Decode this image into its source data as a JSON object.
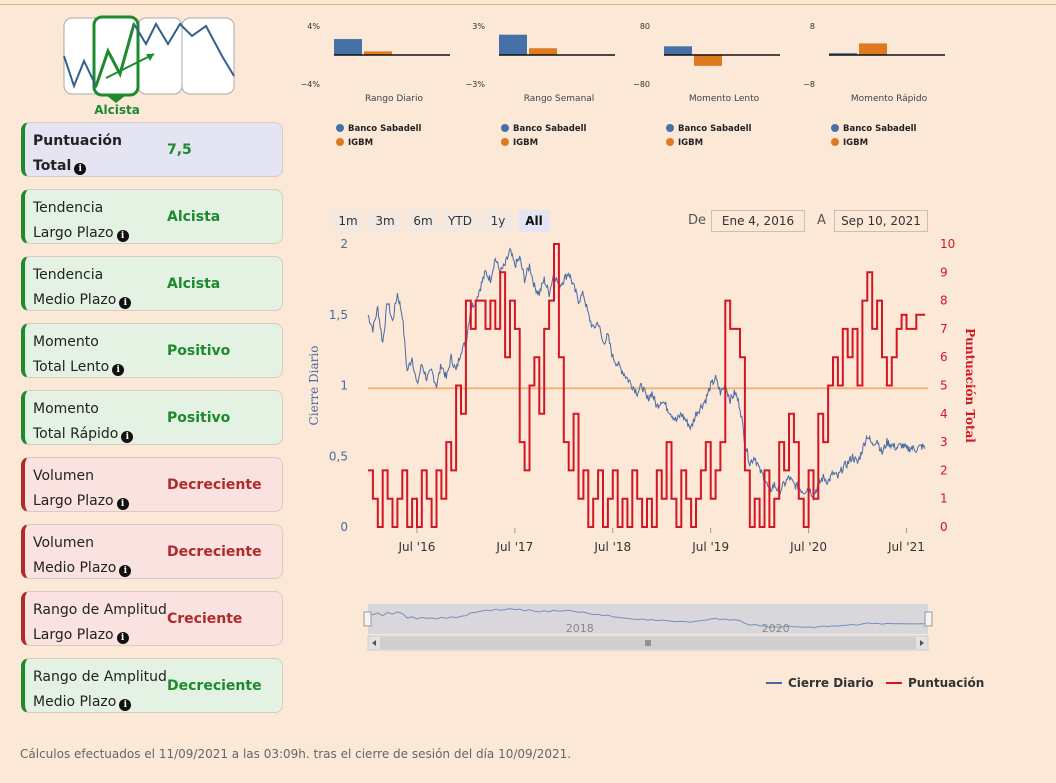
{
  "trend": {
    "label": "Alcista",
    "color": "#1d8a2d"
  },
  "cards": [
    {
      "line1": "Puntuación",
      "line2": "Total",
      "value": "7,5",
      "status": "total"
    },
    {
      "line1": "Tendencia",
      "line2": "Largo Plazo",
      "value": "Alcista",
      "status": "green"
    },
    {
      "line1": "Tendencia",
      "line2": "Medio Plazo",
      "value": "Alcista",
      "status": "green"
    },
    {
      "line1": "Momento",
      "line2": "Total Lento",
      "value": "Positivo",
      "status": "green"
    },
    {
      "line1": "Momento",
      "line2": "Total Rápido",
      "value": "Positivo",
      "status": "green"
    },
    {
      "line1": "Volumen",
      "line2": "Largo Plazo",
      "value": "Decreciente",
      "status": "red"
    },
    {
      "line1": "Volumen",
      "line2": "Medio Plazo",
      "value": "Decreciente",
      "status": "red"
    },
    {
      "line1": "Rango de Amplitud",
      "line2": "Largo Plazo",
      "value": "Creciente",
      "status": "red"
    },
    {
      "line1": "Rango de Amplitud",
      "line2": "Medio Plazo",
      "value": "Decreciente",
      "status": "green"
    }
  ],
  "colors": {
    "sabadell": "#4472a6",
    "igbm": "#e07a1f",
    "close_line": "#4a6aa5",
    "score_line": "#d41524",
    "ref_line": "#f0b07a"
  },
  "range_buttons": [
    "1m",
    "3m",
    "6m",
    "YTD",
    "1y",
    "All"
  ],
  "range_active": "All",
  "date_from_label": "De",
  "date_from": "Ene 4, 2016",
  "date_to_label": "A",
  "date_to": "Sep 10, 2021",
  "footer": "Cálculos efectuados el 11/09/2021 a las 03:09h. tras el cierre de sesión del día 10/09/2021.",
  "chart_data": [
    {
      "type": "bar",
      "title": "Rango Diario",
      "categories": [
        "Banco Sabadell",
        "IGBM"
      ],
      "values": [
        2.2,
        0.5
      ],
      "ylim": [
        -4,
        4
      ],
      "tick_labels": [
        "4%",
        "−4%"
      ]
    },
    {
      "type": "bar",
      "title": "Rango Semanal",
      "categories": [
        "Banco Sabadell",
        "IGBM"
      ],
      "values": [
        2.1,
        0.7
      ],
      "ylim": [
        -3,
        3
      ],
      "tick_labels": [
        "3%",
        "−3%"
      ]
    },
    {
      "type": "bar",
      "title": "Momento Lento",
      "categories": [
        "Banco Sabadell",
        "IGBM"
      ],
      "values": [
        24,
        -30
      ],
      "ylim": [
        -80,
        80
      ],
      "tick_labels": [
        "80",
        "−80"
      ]
    },
    {
      "type": "bar",
      "title": "Momento Rápido",
      "categories": [
        "Banco Sabadell",
        "IGBM"
      ],
      "values": [
        0.5,
        3.2
      ],
      "ylim": [
        -8,
        8
      ],
      "tick_labels": [
        "8",
        "−8"
      ]
    },
    {
      "type": "line",
      "x_ticks": [
        "Jul '16",
        "Jul '17",
        "Jul '18",
        "Jul '19",
        "Jul '20",
        "Jul '21"
      ],
      "y_left_label": "Cierre Diario",
      "y_left_ticks": [
        "0",
        "0,5",
        "1",
        "1,5",
        "2"
      ],
      "y_left_lim": [
        0,
        2
      ],
      "y_right_label": "Puntuación Total",
      "y_right_ticks": [
        "0",
        "1",
        "2",
        "3",
        "4",
        "5",
        "6",
        "7",
        "8",
        "9",
        "10"
      ],
      "y_right_lim": [
        0,
        10
      ],
      "ref_line_left": 0.98,
      "series": [
        {
          "name": "Cierre Diario",
          "axis": "left",
          "points": [
            [
              2016.0,
              1.5
            ],
            [
              2016.05,
              1.4
            ],
            [
              2016.1,
              1.55
            ],
            [
              2016.15,
              1.3
            ],
            [
              2016.2,
              1.6
            ],
            [
              2016.25,
              1.45
            ],
            [
              2016.3,
              1.65
            ],
            [
              2016.35,
              1.5
            ],
            [
              2016.4,
              1.1
            ],
            [
              2016.45,
              1.2
            ],
            [
              2016.5,
              1.0
            ],
            [
              2016.55,
              1.15
            ],
            [
              2016.6,
              1.05
            ],
            [
              2016.65,
              1.1
            ],
            [
              2016.7,
              1.0
            ],
            [
              2016.75,
              1.15
            ],
            [
              2016.8,
              1.05
            ],
            [
              2016.85,
              1.2
            ],
            [
              2016.9,
              1.1
            ],
            [
              2016.95,
              1.25
            ],
            [
              2017.0,
              1.3
            ],
            [
              2017.05,
              1.55
            ],
            [
              2017.1,
              1.6
            ],
            [
              2017.15,
              1.7
            ],
            [
              2017.2,
              1.8
            ],
            [
              2017.25,
              1.75
            ],
            [
              2017.3,
              1.9
            ],
            [
              2017.35,
              1.8
            ],
            [
              2017.4,
              1.85
            ],
            [
              2017.45,
              1.95
            ],
            [
              2017.5,
              1.85
            ],
            [
              2017.55,
              1.9
            ],
            [
              2017.6,
              1.75
            ],
            [
              2017.65,
              1.85
            ],
            [
              2017.7,
              1.7
            ],
            [
              2017.75,
              1.65
            ],
            [
              2017.8,
              1.75
            ],
            [
              2017.85,
              1.65
            ],
            [
              2017.9,
              1.8
            ],
            [
              2017.95,
              1.7
            ],
            [
              2018.0,
              1.75
            ],
            [
              2018.05,
              1.8
            ],
            [
              2018.1,
              1.7
            ],
            [
              2018.15,
              1.6
            ],
            [
              2018.2,
              1.65
            ],
            [
              2018.25,
              1.5
            ],
            [
              2018.3,
              1.4
            ],
            [
              2018.35,
              1.45
            ],
            [
              2018.4,
              1.3
            ],
            [
              2018.45,
              1.35
            ],
            [
              2018.5,
              1.2
            ],
            [
              2018.55,
              1.15
            ],
            [
              2018.6,
              1.1
            ],
            [
              2018.65,
              1.05
            ],
            [
              2018.7,
              1.0
            ],
            [
              2018.75,
              0.95
            ],
            [
              2018.8,
              1.0
            ],
            [
              2018.85,
              0.9
            ],
            [
              2018.9,
              0.95
            ],
            [
              2018.95,
              0.85
            ],
            [
              2019.0,
              0.9
            ],
            [
              2019.05,
              0.85
            ],
            [
              2019.1,
              0.8
            ],
            [
              2019.15,
              0.75
            ],
            [
              2019.2,
              0.8
            ],
            [
              2019.25,
              0.75
            ],
            [
              2019.3,
              0.7
            ],
            [
              2019.35,
              0.8
            ],
            [
              2019.4,
              0.85
            ],
            [
              2019.45,
              0.9
            ],
            [
              2019.5,
              1.0
            ],
            [
              2019.55,
              1.05
            ],
            [
              2019.6,
              0.95
            ],
            [
              2019.65,
              1.0
            ],
            [
              2019.7,
              0.9
            ],
            [
              2019.75,
              0.95
            ],
            [
              2019.8,
              0.85
            ],
            [
              2019.85,
              0.6
            ],
            [
              2019.9,
              0.45
            ],
            [
              2019.95,
              0.5
            ],
            [
              2020.0,
              0.4
            ],
            [
              2020.05,
              0.35
            ],
            [
              2020.1,
              0.25
            ],
            [
              2020.15,
              0.3
            ],
            [
              2020.2,
              0.25
            ],
            [
              2020.25,
              0.3
            ],
            [
              2020.3,
              0.35
            ],
            [
              2020.35,
              0.3
            ],
            [
              2020.4,
              0.28
            ],
            [
              2020.45,
              0.25
            ],
            [
              2020.5,
              0.28
            ],
            [
              2020.55,
              0.22
            ],
            [
              2020.6,
              0.3
            ],
            [
              2020.65,
              0.35
            ],
            [
              2020.7,
              0.32
            ],
            [
              2020.75,
              0.38
            ],
            [
              2020.8,
              0.35
            ],
            [
              2020.85,
              0.42
            ],
            [
              2020.9,
              0.45
            ],
            [
              2020.95,
              0.5
            ],
            [
              2021.0,
              0.45
            ],
            [
              2021.05,
              0.55
            ],
            [
              2021.1,
              0.65
            ],
            [
              2021.15,
              0.58
            ],
            [
              2021.2,
              0.62
            ],
            [
              2021.25,
              0.52
            ],
            [
              2021.3,
              0.6
            ],
            [
              2021.35,
              0.58
            ],
            [
              2021.4,
              0.56
            ],
            [
              2021.45,
              0.58
            ],
            [
              2021.5,
              0.55
            ],
            [
              2021.55,
              0.56
            ],
            [
              2021.6,
              0.55
            ],
            [
              2021.65,
              0.57
            ],
            [
              2021.69,
              0.56
            ]
          ]
        },
        {
          "name": "Puntuación",
          "axis": "right",
          "points": [
            [
              2016.0,
              2
            ],
            [
              2016.05,
              1
            ],
            [
              2016.1,
              0
            ],
            [
              2016.15,
              2
            ],
            [
              2016.2,
              1
            ],
            [
              2016.25,
              0
            ],
            [
              2016.3,
              1
            ],
            [
              2016.35,
              2
            ],
            [
              2016.4,
              0
            ],
            [
              2016.45,
              1
            ],
            [
              2016.5,
              0
            ],
            [
              2016.55,
              2
            ],
            [
              2016.6,
              1
            ],
            [
              2016.65,
              0
            ],
            [
              2016.7,
              2
            ],
            [
              2016.75,
              1
            ],
            [
              2016.8,
              3
            ],
            [
              2016.85,
              2
            ],
            [
              2016.9,
              5
            ],
            [
              2016.95,
              4
            ],
            [
              2017.0,
              8
            ],
            [
              2017.05,
              7
            ],
            [
              2017.1,
              8
            ],
            [
              2017.15,
              8
            ],
            [
              2017.2,
              7
            ],
            [
              2017.25,
              8
            ],
            [
              2017.3,
              7
            ],
            [
              2017.35,
              9
            ],
            [
              2017.4,
              6
            ],
            [
              2017.45,
              8
            ],
            [
              2017.5,
              7
            ],
            [
              2017.55,
              3
            ],
            [
              2017.6,
              2
            ],
            [
              2017.65,
              5
            ],
            [
              2017.7,
              6
            ],
            [
              2017.75,
              4
            ],
            [
              2017.8,
              7
            ],
            [
              2017.85,
              8
            ],
            [
              2017.9,
              10
            ],
            [
              2017.95,
              6
            ],
            [
              2018.0,
              3
            ],
            [
              2018.05,
              2
            ],
            [
              2018.1,
              4
            ],
            [
              2018.15,
              1
            ],
            [
              2018.2,
              2
            ],
            [
              2018.25,
              0
            ],
            [
              2018.3,
              1
            ],
            [
              2018.35,
              2
            ],
            [
              2018.4,
              0
            ],
            [
              2018.45,
              1
            ],
            [
              2018.5,
              2
            ],
            [
              2018.55,
              0
            ],
            [
              2018.6,
              1
            ],
            [
              2018.65,
              0
            ],
            [
              2018.7,
              2
            ],
            [
              2018.75,
              1
            ],
            [
              2018.8,
              0
            ],
            [
              2018.85,
              1
            ],
            [
              2018.9,
              0
            ],
            [
              2018.95,
              2
            ],
            [
              2019.0,
              1
            ],
            [
              2019.05,
              3
            ],
            [
              2019.1,
              1
            ],
            [
              2019.15,
              0
            ],
            [
              2019.2,
              2
            ],
            [
              2019.25,
              1
            ],
            [
              2019.3,
              0
            ],
            [
              2019.35,
              1
            ],
            [
              2019.4,
              2
            ],
            [
              2019.45,
              3
            ],
            [
              2019.5,
              1
            ],
            [
              2019.55,
              2
            ],
            [
              2019.6,
              3
            ],
            [
              2019.65,
              8
            ],
            [
              2019.7,
              7
            ],
            [
              2019.75,
              7
            ],
            [
              2019.8,
              6
            ],
            [
              2019.85,
              2
            ],
            [
              2019.9,
              0
            ],
            [
              2019.95,
              1
            ],
            [
              2020.0,
              0
            ],
            [
              2020.05,
              2
            ],
            [
              2020.1,
              0
            ],
            [
              2020.15,
              1
            ],
            [
              2020.2,
              3
            ],
            [
              2020.25,
              2
            ],
            [
              2020.3,
              4
            ],
            [
              2020.35,
              3
            ],
            [
              2020.4,
              1
            ],
            [
              2020.45,
              0
            ],
            [
              2020.5,
              2
            ],
            [
              2020.55,
              1
            ],
            [
              2020.6,
              4
            ],
            [
              2020.65,
              3
            ],
            [
              2020.7,
              5
            ],
            [
              2020.75,
              6
            ],
            [
              2020.8,
              5
            ],
            [
              2020.85,
              7
            ],
            [
              2020.9,
              6
            ],
            [
              2020.95,
              7
            ],
            [
              2021.0,
              5
            ],
            [
              2021.05,
              8
            ],
            [
              2021.1,
              9
            ],
            [
              2021.15,
              7
            ],
            [
              2021.2,
              8
            ],
            [
              2021.25,
              6
            ],
            [
              2021.3,
              5
            ],
            [
              2021.35,
              6
            ],
            [
              2021.4,
              7
            ],
            [
              2021.45,
              7.5
            ],
            [
              2021.5,
              7
            ],
            [
              2021.55,
              7
            ],
            [
              2021.6,
              7.5
            ],
            [
              2021.65,
              7.5
            ],
            [
              2021.69,
              7.5
            ]
          ]
        }
      ],
      "navigator_ticks": [
        "2018",
        "2020"
      ]
    }
  ]
}
